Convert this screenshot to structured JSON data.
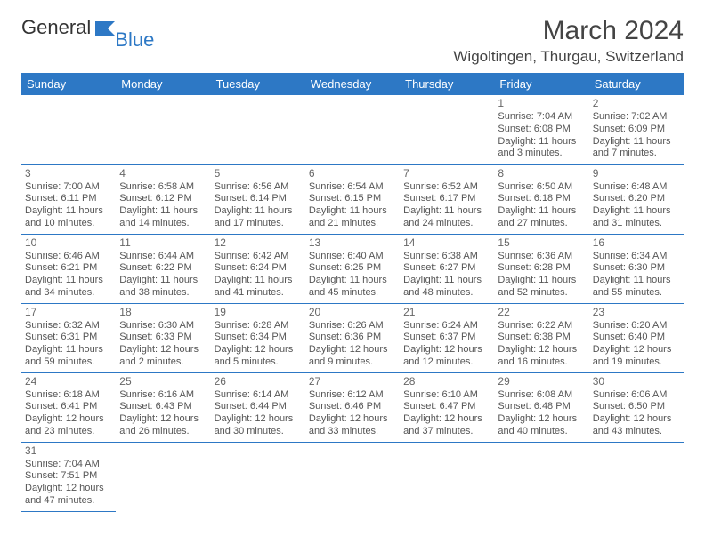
{
  "logo": {
    "part1": "General",
    "part2": "Blue"
  },
  "title": "March 2024",
  "location": "Wigoltingen, Thurgau, Switzerland",
  "colors": {
    "header_bg": "#2d78c5",
    "border": "#2d78c5",
    "text": "#555555"
  },
  "day_headers": [
    "Sunday",
    "Monday",
    "Tuesday",
    "Wednesday",
    "Thursday",
    "Friday",
    "Saturday"
  ],
  "weeks": [
    [
      null,
      null,
      null,
      null,
      null,
      {
        "n": "1",
        "sr": "Sunrise: 7:04 AM",
        "ss": "Sunset: 6:08 PM",
        "d1": "Daylight: 11 hours",
        "d2": "and 3 minutes."
      },
      {
        "n": "2",
        "sr": "Sunrise: 7:02 AM",
        "ss": "Sunset: 6:09 PM",
        "d1": "Daylight: 11 hours",
        "d2": "and 7 minutes."
      }
    ],
    [
      {
        "n": "3",
        "sr": "Sunrise: 7:00 AM",
        "ss": "Sunset: 6:11 PM",
        "d1": "Daylight: 11 hours",
        "d2": "and 10 minutes."
      },
      {
        "n": "4",
        "sr": "Sunrise: 6:58 AM",
        "ss": "Sunset: 6:12 PM",
        "d1": "Daylight: 11 hours",
        "d2": "and 14 minutes."
      },
      {
        "n": "5",
        "sr": "Sunrise: 6:56 AM",
        "ss": "Sunset: 6:14 PM",
        "d1": "Daylight: 11 hours",
        "d2": "and 17 minutes."
      },
      {
        "n": "6",
        "sr": "Sunrise: 6:54 AM",
        "ss": "Sunset: 6:15 PM",
        "d1": "Daylight: 11 hours",
        "d2": "and 21 minutes."
      },
      {
        "n": "7",
        "sr": "Sunrise: 6:52 AM",
        "ss": "Sunset: 6:17 PM",
        "d1": "Daylight: 11 hours",
        "d2": "and 24 minutes."
      },
      {
        "n": "8",
        "sr": "Sunrise: 6:50 AM",
        "ss": "Sunset: 6:18 PM",
        "d1": "Daylight: 11 hours",
        "d2": "and 27 minutes."
      },
      {
        "n": "9",
        "sr": "Sunrise: 6:48 AM",
        "ss": "Sunset: 6:20 PM",
        "d1": "Daylight: 11 hours",
        "d2": "and 31 minutes."
      }
    ],
    [
      {
        "n": "10",
        "sr": "Sunrise: 6:46 AM",
        "ss": "Sunset: 6:21 PM",
        "d1": "Daylight: 11 hours",
        "d2": "and 34 minutes."
      },
      {
        "n": "11",
        "sr": "Sunrise: 6:44 AM",
        "ss": "Sunset: 6:22 PM",
        "d1": "Daylight: 11 hours",
        "d2": "and 38 minutes."
      },
      {
        "n": "12",
        "sr": "Sunrise: 6:42 AM",
        "ss": "Sunset: 6:24 PM",
        "d1": "Daylight: 11 hours",
        "d2": "and 41 minutes."
      },
      {
        "n": "13",
        "sr": "Sunrise: 6:40 AM",
        "ss": "Sunset: 6:25 PM",
        "d1": "Daylight: 11 hours",
        "d2": "and 45 minutes."
      },
      {
        "n": "14",
        "sr": "Sunrise: 6:38 AM",
        "ss": "Sunset: 6:27 PM",
        "d1": "Daylight: 11 hours",
        "d2": "and 48 minutes."
      },
      {
        "n": "15",
        "sr": "Sunrise: 6:36 AM",
        "ss": "Sunset: 6:28 PM",
        "d1": "Daylight: 11 hours",
        "d2": "and 52 minutes."
      },
      {
        "n": "16",
        "sr": "Sunrise: 6:34 AM",
        "ss": "Sunset: 6:30 PM",
        "d1": "Daylight: 11 hours",
        "d2": "and 55 minutes."
      }
    ],
    [
      {
        "n": "17",
        "sr": "Sunrise: 6:32 AM",
        "ss": "Sunset: 6:31 PM",
        "d1": "Daylight: 11 hours",
        "d2": "and 59 minutes."
      },
      {
        "n": "18",
        "sr": "Sunrise: 6:30 AM",
        "ss": "Sunset: 6:33 PM",
        "d1": "Daylight: 12 hours",
        "d2": "and 2 minutes."
      },
      {
        "n": "19",
        "sr": "Sunrise: 6:28 AM",
        "ss": "Sunset: 6:34 PM",
        "d1": "Daylight: 12 hours",
        "d2": "and 5 minutes."
      },
      {
        "n": "20",
        "sr": "Sunrise: 6:26 AM",
        "ss": "Sunset: 6:36 PM",
        "d1": "Daylight: 12 hours",
        "d2": "and 9 minutes."
      },
      {
        "n": "21",
        "sr": "Sunrise: 6:24 AM",
        "ss": "Sunset: 6:37 PM",
        "d1": "Daylight: 12 hours",
        "d2": "and 12 minutes."
      },
      {
        "n": "22",
        "sr": "Sunrise: 6:22 AM",
        "ss": "Sunset: 6:38 PM",
        "d1": "Daylight: 12 hours",
        "d2": "and 16 minutes."
      },
      {
        "n": "23",
        "sr": "Sunrise: 6:20 AM",
        "ss": "Sunset: 6:40 PM",
        "d1": "Daylight: 12 hours",
        "d2": "and 19 minutes."
      }
    ],
    [
      {
        "n": "24",
        "sr": "Sunrise: 6:18 AM",
        "ss": "Sunset: 6:41 PM",
        "d1": "Daylight: 12 hours",
        "d2": "and 23 minutes."
      },
      {
        "n": "25",
        "sr": "Sunrise: 6:16 AM",
        "ss": "Sunset: 6:43 PM",
        "d1": "Daylight: 12 hours",
        "d2": "and 26 minutes."
      },
      {
        "n": "26",
        "sr": "Sunrise: 6:14 AM",
        "ss": "Sunset: 6:44 PM",
        "d1": "Daylight: 12 hours",
        "d2": "and 30 minutes."
      },
      {
        "n": "27",
        "sr": "Sunrise: 6:12 AM",
        "ss": "Sunset: 6:46 PM",
        "d1": "Daylight: 12 hours",
        "d2": "and 33 minutes."
      },
      {
        "n": "28",
        "sr": "Sunrise: 6:10 AM",
        "ss": "Sunset: 6:47 PM",
        "d1": "Daylight: 12 hours",
        "d2": "and 37 minutes."
      },
      {
        "n": "29",
        "sr": "Sunrise: 6:08 AM",
        "ss": "Sunset: 6:48 PM",
        "d1": "Daylight: 12 hours",
        "d2": "and 40 minutes."
      },
      {
        "n": "30",
        "sr": "Sunrise: 6:06 AM",
        "ss": "Sunset: 6:50 PM",
        "d1": "Daylight: 12 hours",
        "d2": "and 43 minutes."
      }
    ],
    [
      {
        "n": "31",
        "sr": "Sunrise: 7:04 AM",
        "ss": "Sunset: 7:51 PM",
        "d1": "Daylight: 12 hours",
        "d2": "and 47 minutes."
      },
      null,
      null,
      null,
      null,
      null,
      null
    ]
  ]
}
